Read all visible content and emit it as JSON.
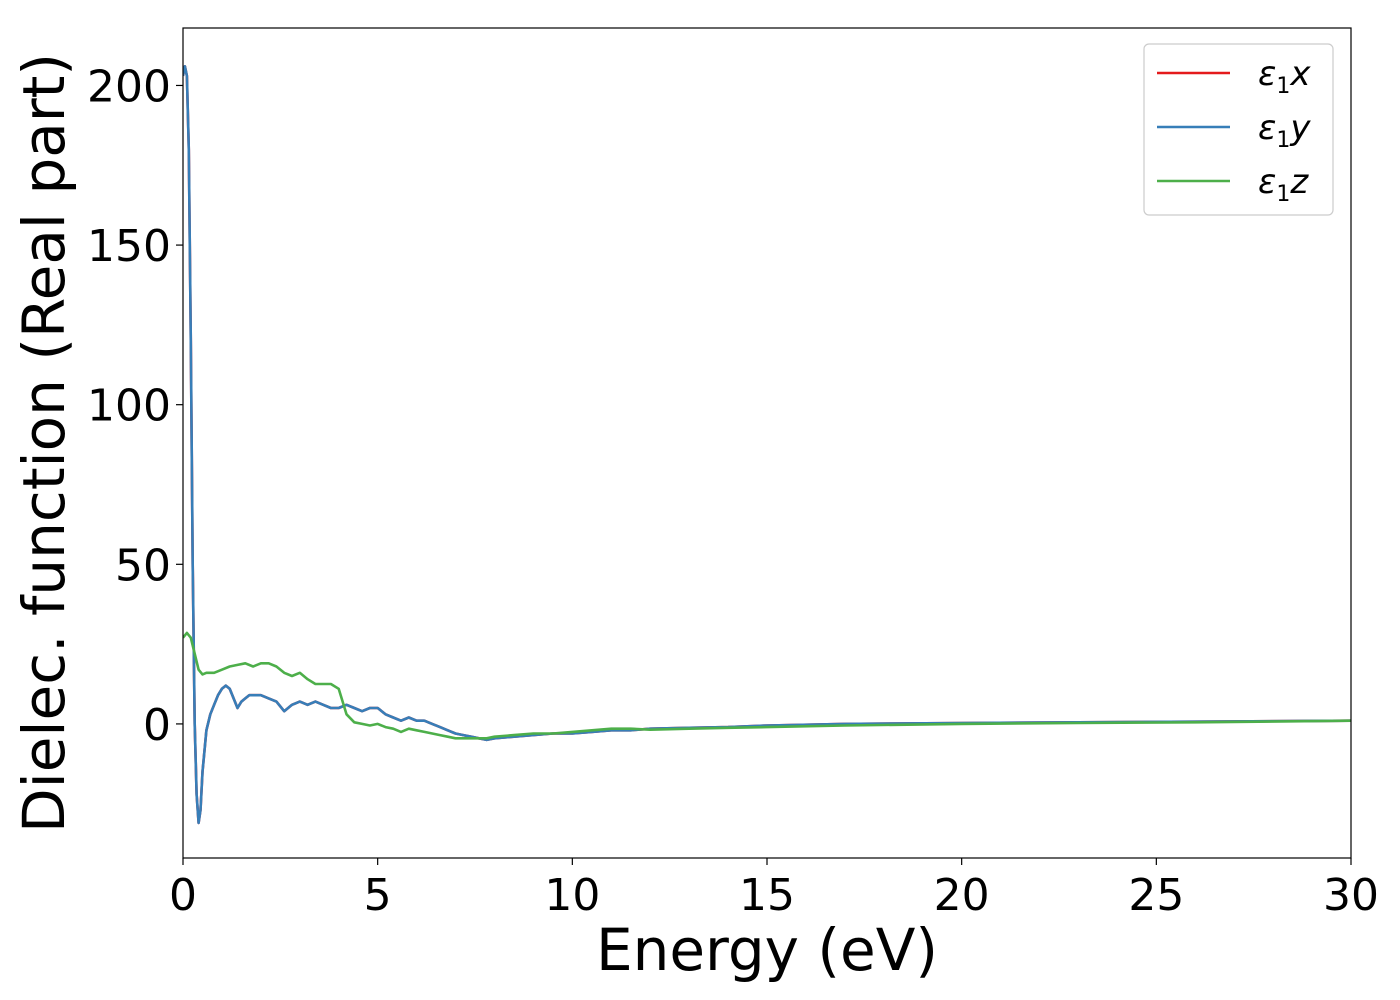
{
  "chart_data": {
    "type": "line",
    "xlabel": "Energy (eV)",
    "ylabel": "Dielec. function (Real part)",
    "xlim": [
      0,
      30
    ],
    "ylim": [
      -42,
      218
    ],
    "xticks": [
      0,
      5,
      10,
      15,
      20,
      25,
      30
    ],
    "yticks": [
      0,
      50,
      100,
      150,
      200
    ],
    "grid": false,
    "legend_position": "top-right",
    "series": [
      {
        "name": "ε1x",
        "base": "ε",
        "sub": "1",
        "suffix": "x",
        "color": "#e41a1c",
        "x": [
          0,
          0.05,
          0.1,
          0.15,
          0.2,
          0.25,
          0.3,
          0.35,
          0.4,
          0.45,
          0.5,
          0.6,
          0.7,
          0.8,
          0.9,
          1.0,
          1.1,
          1.2,
          1.3,
          1.4,
          1.5,
          1.6,
          1.7,
          1.8,
          2.0,
          2.2,
          2.4,
          2.6,
          2.8,
          3.0,
          3.2,
          3.4,
          3.6,
          3.8,
          4.0,
          4.2,
          4.4,
          4.6,
          4.8,
          5.0,
          5.2,
          5.4,
          5.6,
          5.8,
          6.0,
          6.2,
          6.4,
          6.6,
          6.8,
          7.0,
          7.2,
          7.4,
          7.6,
          7.8,
          8.0,
          8.5,
          9.0,
          9.5,
          10.0,
          10.5,
          11.0,
          11.5,
          12.0,
          13.0,
          14.0,
          15.0,
          17.0,
          20.0,
          23.0,
          26.0,
          30.0
        ],
        "y": [
          203,
          206,
          203,
          180,
          120,
          50,
          0,
          -22,
          -31,
          -27,
          -15,
          -2,
          3,
          6,
          9,
          11,
          12,
          11,
          8,
          5,
          7,
          8,
          9,
          9,
          9,
          8,
          7,
          4,
          6,
          7,
          6,
          7,
          6,
          5,
          5,
          6,
          5,
          4,
          5,
          5,
          3,
          2,
          1,
          2,
          1,
          1,
          0,
          -1,
          -2,
          -3,
          -3.5,
          -4,
          -4.5,
          -5,
          -4.5,
          -4,
          -3.5,
          -3,
          -3,
          -2.5,
          -2,
          -2,
          -1.5,
          -1.2,
          -1,
          -0.5,
          0,
          0.3,
          0.5,
          0.7,
          1
        ]
      },
      {
        "name": "ε1y",
        "base": "ε",
        "sub": "1",
        "suffix": "y",
        "color": "#377eb8",
        "x": [
          0,
          0.05,
          0.1,
          0.15,
          0.2,
          0.25,
          0.3,
          0.35,
          0.4,
          0.45,
          0.5,
          0.6,
          0.7,
          0.8,
          0.9,
          1.0,
          1.1,
          1.2,
          1.3,
          1.4,
          1.5,
          1.6,
          1.7,
          1.8,
          2.0,
          2.2,
          2.4,
          2.6,
          2.8,
          3.0,
          3.2,
          3.4,
          3.6,
          3.8,
          4.0,
          4.2,
          4.4,
          4.6,
          4.8,
          5.0,
          5.2,
          5.4,
          5.6,
          5.8,
          6.0,
          6.2,
          6.4,
          6.6,
          6.8,
          7.0,
          7.2,
          7.4,
          7.6,
          7.8,
          8.0,
          8.5,
          9.0,
          9.5,
          10.0,
          10.5,
          11.0,
          11.5,
          12.0,
          13.0,
          14.0,
          15.0,
          17.0,
          20.0,
          23.0,
          26.0,
          30.0
        ],
        "y": [
          203,
          206,
          203,
          180,
          120,
          50,
          0,
          -22,
          -31,
          -27,
          -15,
          -2,
          3,
          6,
          9,
          11,
          12,
          11,
          8,
          5,
          7,
          8,
          9,
          9,
          9,
          8,
          7,
          4,
          6,
          7,
          6,
          7,
          6,
          5,
          5,
          6,
          5,
          4,
          5,
          5,
          3,
          2,
          1,
          2,
          1,
          1,
          0,
          -1,
          -2,
          -3,
          -3.5,
          -4,
          -4.5,
          -5,
          -4.5,
          -4,
          -3.5,
          -3,
          -3,
          -2.5,
          -2,
          -2,
          -1.5,
          -1.2,
          -1,
          -0.5,
          0,
          0.3,
          0.5,
          0.7,
          1
        ]
      },
      {
        "name": "ε1z",
        "base": "ε",
        "sub": "1",
        "suffix": "z",
        "color": "#4daf4a",
        "x": [
          0,
          0.1,
          0.2,
          0.3,
          0.4,
          0.5,
          0.6,
          0.8,
          1.0,
          1.2,
          1.4,
          1.6,
          1.8,
          2.0,
          2.2,
          2.4,
          2.6,
          2.8,
          3.0,
          3.2,
          3.4,
          3.6,
          3.8,
          4.0,
          4.2,
          4.4,
          4.6,
          4.8,
          5.0,
          5.2,
          5.4,
          5.6,
          5.8,
          6.0,
          6.2,
          6.4,
          6.6,
          6.8,
          7.0,
          7.2,
          7.4,
          7.6,
          7.8,
          8.0,
          8.5,
          9.0,
          9.5,
          10.0,
          10.5,
          11.0,
          11.5,
          12.0,
          13.0,
          14.0,
          15.0,
          17.0,
          20.0,
          23.0,
          26.0,
          30.0
        ],
        "y": [
          27,
          28.5,
          27,
          22,
          17,
          15.5,
          16,
          16,
          17,
          18,
          18.5,
          19,
          18,
          19,
          19,
          18,
          16,
          15,
          16,
          14,
          12.5,
          12.5,
          12.5,
          11,
          3,
          0.5,
          0,
          -0.5,
          0,
          -1,
          -1.5,
          -2.5,
          -1.5,
          -2,
          -2.5,
          -3,
          -3.5,
          -4,
          -4.5,
          -4.5,
          -4.5,
          -4.5,
          -4.5,
          -4,
          -3.5,
          -3,
          -3,
          -2.5,
          -2,
          -1.5,
          -1.5,
          -1.8,
          -1.5,
          -1.2,
          -1,
          -0.5,
          0,
          0.3,
          0.5,
          1
        ]
      }
    ]
  }
}
